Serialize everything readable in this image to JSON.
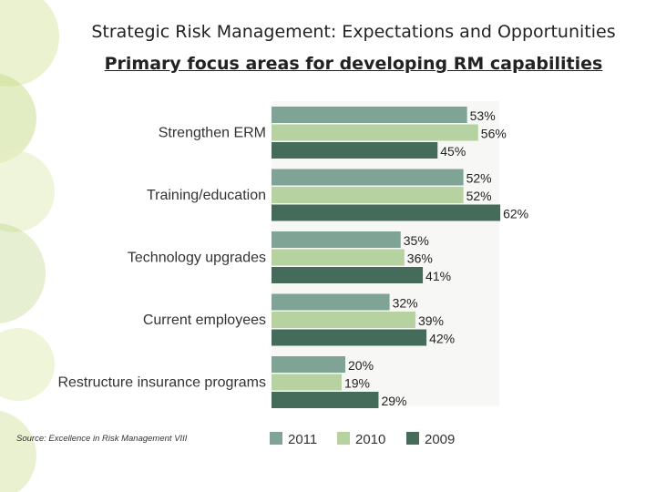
{
  "slide": {
    "title": "Strategic Risk Management:  Expectations and Opportunities",
    "subtitle": "Primary focus areas for developing RM capabilities",
    "source": "Source: Excellence in Risk Management VIII"
  },
  "colors": {
    "deco": [
      "#c7dc8a",
      "#d9e8a8",
      "#b8d27a",
      "#e4efc2"
    ],
    "series_2011": "#7fa496",
    "series_2010": "#b5d2a0",
    "series_2009": "#456b5a"
  },
  "chart_data": {
    "type": "bar",
    "orientation": "horizontal",
    "title": "Primary focus areas for developing RM capabilities",
    "categories": [
      "Strengthen ERM",
      "Training/education",
      "Technology upgrades",
      "Current employees",
      "Restructure insurance programs"
    ],
    "series": [
      {
        "name": "2011",
        "values": [
          53,
          52,
          35,
          32,
          20
        ]
      },
      {
        "name": "2010",
        "values": [
          56,
          52,
          36,
          39,
          19
        ]
      },
      {
        "name": "2009",
        "values": [
          45,
          62,
          41,
          42,
          29
        ]
      }
    ],
    "value_suffix": "%",
    "xlim": [
      0,
      70
    ],
    "grid": false,
    "legend": "bottom"
  }
}
